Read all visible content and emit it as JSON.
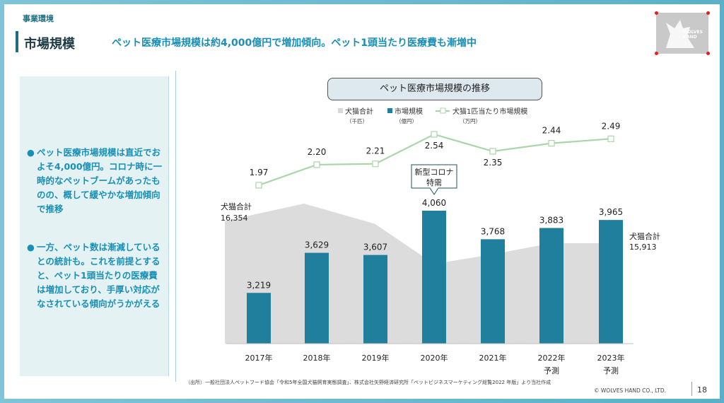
{
  "header": {
    "section": "事業環境",
    "title": "市場規模",
    "subtitle": "ペット医療市場規模は約4,000億円で増加傾向。ペット1頭当たり医療費も漸増中",
    "logo_text": [
      "WOLVES",
      "HAND"
    ]
  },
  "left_panel": {
    "bullets": [
      {
        "dot": "●",
        "text": "ペット医療市場規模は直近でおよそ4,000億円。コロナ時に一時的なペットブームがあったものの、概して緩やかな増加傾向で推移"
      },
      {
        "dot": "●",
        "text": "一方、ペット数は漸減しているとの統計も。これを前提とすると、ペット1頭当たりの医療費は増加しており、手厚い対応がなされている傾向がうかがえる"
      }
    ]
  },
  "chart_data": {
    "type": "bar",
    "title": "ペット医療市場規模の推移",
    "categories": [
      "2017年",
      "2018年",
      "2019年",
      "2020年",
      "2021年",
      "2022年",
      "2023年"
    ],
    "category_notes": [
      "",
      "",
      "",
      "",
      "",
      "予測",
      "予測"
    ],
    "legend": [
      {
        "label": "犬猫合計",
        "unit": "（千匹）",
        "color": "#d9d9d9"
      },
      {
        "label": "市場規模",
        "unit": "（億円）",
        "color": "#1f7f9c"
      },
      {
        "label": "犬猫1匹当たり市場規模",
        "unit": "（万円）",
        "color": "#a9d6a9"
      }
    ],
    "series": [
      {
        "name": "市場規模",
        "type": "bar",
        "values": [
          3219,
          3629,
          3607,
          4060,
          3768,
          3883,
          3965
        ],
        "labels": [
          "3,219",
          "3,629",
          "3,607",
          "4,060",
          "3,768",
          "3,883",
          "3,965"
        ],
        "color": "#1f7f9c"
      },
      {
        "name": "犬猫1匹当たり市場規模",
        "type": "line",
        "values": [
          1.97,
          2.2,
          2.21,
          2.54,
          2.35,
          2.44,
          2.49
        ],
        "labels": [
          "1.97",
          "2.20",
          "2.21",
          "2.54",
          "2.35",
          "2.44",
          "2.49"
        ],
        "color": "#a9d6a9"
      },
      {
        "name": "犬猫合計",
        "type": "area",
        "values": [
          16354,
          16700,
          16300,
          15500,
          15700,
          15913,
          15913
        ],
        "color": "#dcdcdc"
      }
    ],
    "area_labels": {
      "start": {
        "name": "犬猫合計",
        "value": "16,354"
      },
      "end": {
        "name": "犬猫合計",
        "value": "15,913"
      }
    },
    "annotation": {
      "lines": [
        "新型コロナ",
        "特需"
      ],
      "category": "2020年"
    }
  },
  "footer": {
    "source": "（出所）一般社団法人ペットフード協会「令和5年全国犬猫飼育実態調査」、株式会社矢野経済研究所「ペットビジネスマーケティング総覧2022 年版」より当社作成",
    "copyright": "© WOLVES HAND CO., LTD.",
    "page": "18"
  }
}
